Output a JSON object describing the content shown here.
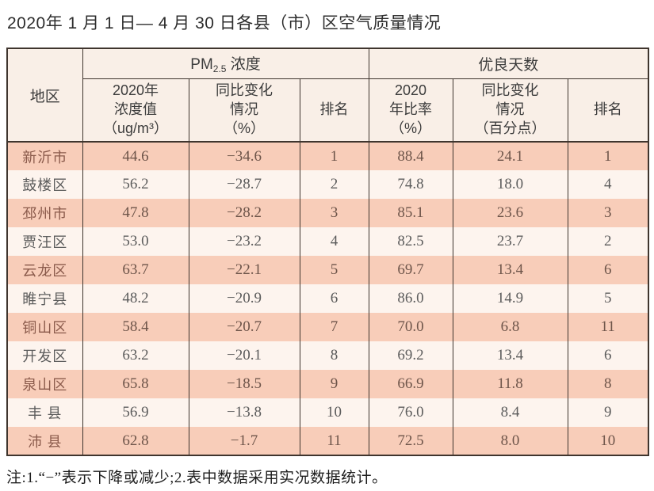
{
  "title": "2020年 1 月 1 日— 4 月 30 日各县（市）区空气质量情况",
  "note": "注:1.“−”表示下降或减少;2.表中数据采用实况数据统计。",
  "colors": {
    "row_salmon": "#f8cdb9",
    "row_light": "#fdf4ee",
    "header_bg": "#f9efe7",
    "border": "#3f352e"
  },
  "table": {
    "header": {
      "region": "地区",
      "pm_prefix": "PM",
      "pm_sub": "2.5",
      "pm_suffix": " 浓度",
      "good_days_group": "优良天数",
      "col_pm_value": "2020年\n浓度值\n（ug/m³）",
      "col_pm_change": "同比变化\n情况\n（%）",
      "col_pm_rank": "排名",
      "col_good_ratio": "2020\n年比率\n（%）",
      "col_good_change": "同比变化\n情况\n（百分点）",
      "col_good_rank": "排名"
    },
    "rows": [
      {
        "region": "新沂市",
        "values": [
          "44.6",
          "−34.6",
          "1",
          "88.4",
          "24.1",
          "1"
        ]
      },
      {
        "region": "鼓楼区",
        "values": [
          "56.2",
          "−28.7",
          "2",
          "74.8",
          "18.0",
          "4"
        ]
      },
      {
        "region": "邳州市",
        "values": [
          "47.8",
          "−28.2",
          "3",
          "85.1",
          "23.6",
          "3"
        ]
      },
      {
        "region": "贾汪区",
        "values": [
          "53.0",
          "−23.2",
          "4",
          "82.5",
          "23.7",
          "2"
        ]
      },
      {
        "region": "云龙区",
        "values": [
          "63.7",
          "−22.1",
          "5",
          "69.7",
          "13.4",
          "6"
        ]
      },
      {
        "region": "睢宁县",
        "values": [
          "48.2",
          "−20.9",
          "6",
          "86.0",
          "14.9",
          "5"
        ]
      },
      {
        "region": "铜山区",
        "values": [
          "58.4",
          "−20.7",
          "7",
          "70.0",
          "6.8",
          "11"
        ]
      },
      {
        "region": "开发区",
        "values": [
          "63.2",
          "−20.1",
          "8",
          "69.2",
          "13.4",
          "6"
        ]
      },
      {
        "region": "泉山区",
        "values": [
          "65.8",
          "−18.5",
          "9",
          "66.9",
          "11.8",
          "8"
        ]
      },
      {
        "region": "丰 县",
        "values": [
          "56.9",
          "−13.8",
          "10",
          "76.0",
          "8.4",
          "9"
        ]
      },
      {
        "region": "沛 县",
        "values": [
          "62.8",
          "−1.7",
          "11",
          "72.5",
          "8.0",
          "10"
        ]
      }
    ]
  }
}
